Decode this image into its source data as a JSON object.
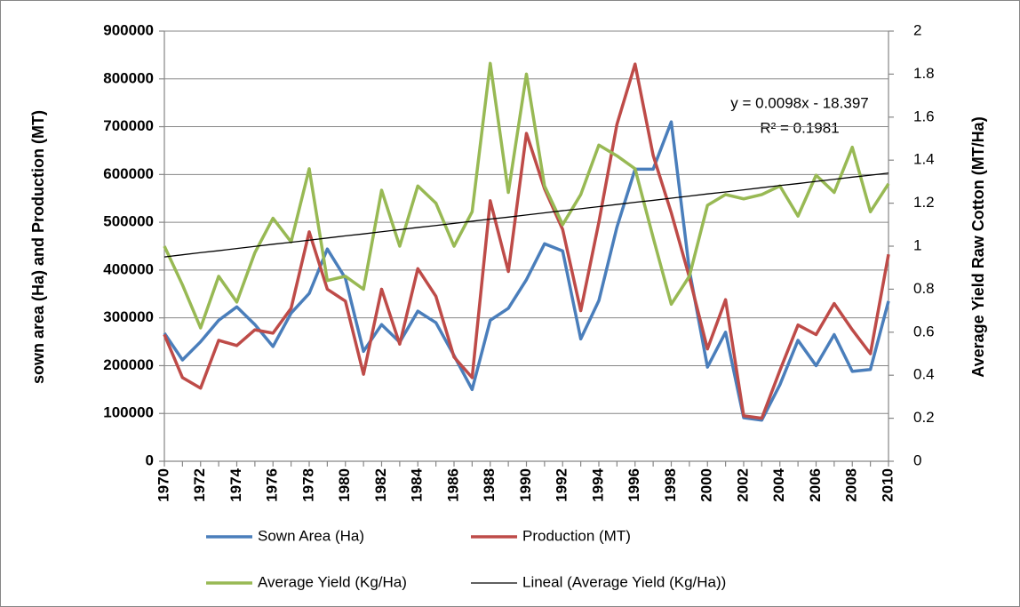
{
  "chart_data": {
    "type": "line",
    "categories": [
      "1970",
      null,
      "1972",
      null,
      "1974",
      null,
      "1976",
      null,
      "1978",
      null,
      "1980",
      null,
      "1982",
      null,
      "1984",
      null,
      "1986",
      null,
      "1988",
      null,
      "1990",
      null,
      "1992",
      null,
      "1994",
      null,
      "1996",
      null,
      "1998",
      null,
      "2000",
      null,
      "2002",
      null,
      "2004",
      null,
      "2006",
      null,
      "2008",
      null,
      "2010"
    ],
    "ylabel": "sown area (Ha) and Production (MT)",
    "y2label": "Average Yield Raw Cotton (MT/Ha)",
    "annotations": [
      "y = 0.0098x - 18.397",
      "R² = 0.1981"
    ],
    "ylim": [
      0,
      900000
    ],
    "yticks": [
      0,
      100000,
      200000,
      300000,
      400000,
      500000,
      600000,
      700000,
      800000,
      900000
    ],
    "y2lim": [
      0,
      2
    ],
    "y2ticks": [
      0,
      0.2,
      0.4,
      0.6,
      0.8,
      1,
      1.2,
      1.4,
      1.6,
      1.8,
      2
    ],
    "grid": true,
    "legend": "bottom",
    "series": [
      {
        "name": "Sown Area (Ha)",
        "color": "#4a7ebb",
        "values": [
          268000,
          212000,
          250000,
          295000,
          323000,
          286000,
          240000,
          310000,
          351000,
          444000,
          383000,
          230000,
          286000,
          249000,
          314000,
          290000,
          221000,
          150000,
          295000,
          320000,
          380000,
          455000,
          440000,
          256000,
          336000,
          490000,
          611000,
          611000,
          710000,
          400000,
          197000,
          270000,
          91000,
          86000,
          160000,
          253000,
          200000,
          265000,
          188000,
          192000,
          335000
        ]
      },
      {
        "name": "Production (MT)",
        "color": "#be4b48",
        "values": [
          265000,
          175000,
          153000,
          253000,
          242000,
          275000,
          268000,
          320000,
          480000,
          360000,
          335000,
          182000,
          360000,
          245000,
          403000,
          345000,
          218000,
          175000,
          545000,
          397000,
          686000,
          570000,
          485000,
          315000,
          500000,
          705000,
          831000,
          640000,
          520000,
          385000,
          235000,
          338000,
          95000,
          90000,
          190000,
          285000,
          265000,
          330000,
          275000,
          225000,
          433000
        ]
      },
      {
        "name": "Average Yield  (Kg/Ha)",
        "color": "#98b954",
        "axis": "y2",
        "values": [
          1.0,
          0.82,
          0.62,
          0.86,
          0.74,
          0.97,
          1.13,
          1.02,
          1.36,
          0.84,
          0.86,
          0.8,
          1.26,
          1.0,
          1.28,
          1.2,
          1.0,
          1.16,
          1.85,
          1.25,
          1.8,
          1.28,
          1.1,
          1.24,
          1.47,
          1.42,
          1.36,
          1.04,
          0.73,
          0.86,
          1.19,
          1.24,
          1.22,
          1.24,
          1.28,
          1.14,
          1.33,
          1.25,
          1.46,
          1.16,
          1.29
        ]
      },
      {
        "name": "Lineal (Average Yield  (Kg/Ha))",
        "color": "#000000",
        "axis": "y2",
        "values": [
          0.95,
          0.96,
          0.97,
          0.979,
          0.989,
          0.999,
          1.009,
          1.018,
          1.028,
          1.038,
          1.048,
          1.057,
          1.067,
          1.077,
          1.087,
          1.096,
          1.106,
          1.116,
          1.126,
          1.135,
          1.145,
          1.155,
          1.165,
          1.174,
          1.184,
          1.194,
          1.204,
          1.213,
          1.223,
          1.233,
          1.243,
          1.252,
          1.262,
          1.272,
          1.282,
          1.291,
          1.301,
          1.311,
          1.321,
          1.33,
          1.34
        ]
      }
    ]
  }
}
